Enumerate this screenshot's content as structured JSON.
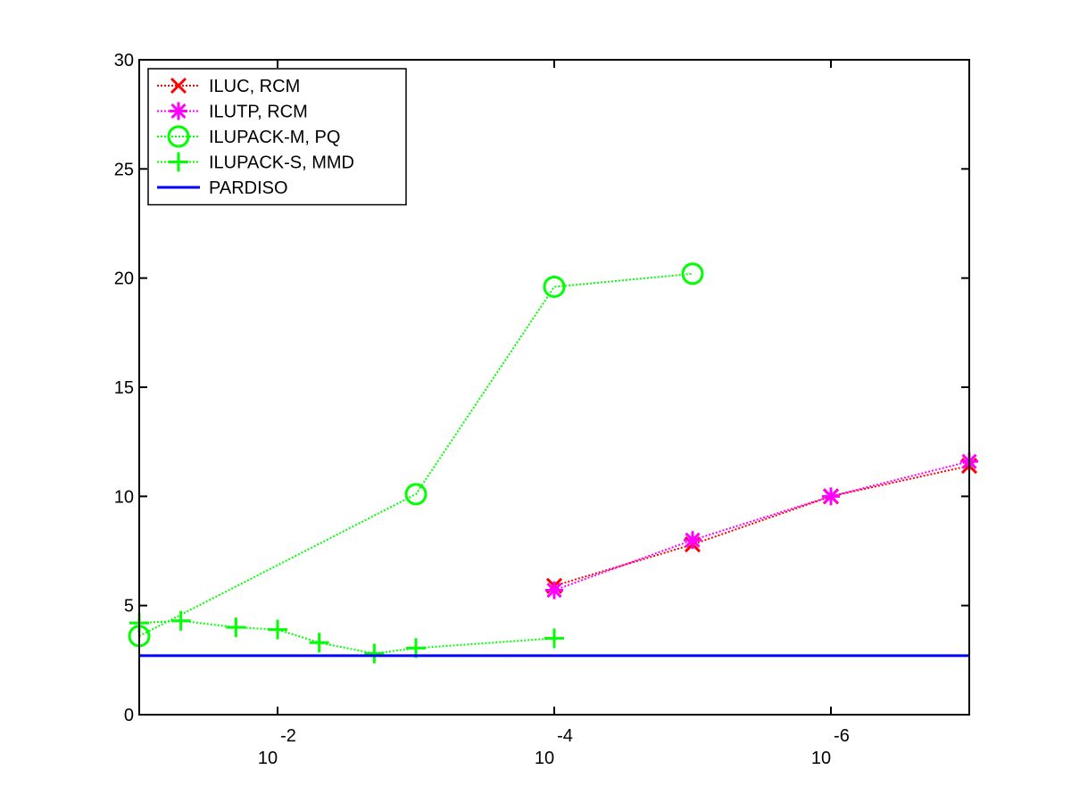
{
  "chart_data": {
    "type": "line",
    "title": "",
    "xlabel": "",
    "ylabel": "",
    "x_scale": "log",
    "x_direction": "decreasing",
    "xlim": [
      0.1,
      1e-07
    ],
    "ylim": [
      0,
      30
    ],
    "x_ticks": [
      {
        "value": 0.01,
        "base": "10",
        "exp": "-2"
      },
      {
        "value": 0.0001,
        "base": "10",
        "exp": "-4"
      },
      {
        "value": 1e-06,
        "base": "10",
        "exp": "-6"
      }
    ],
    "y_ticks": [
      0,
      5,
      10,
      15,
      20,
      25,
      30
    ],
    "grid": false,
    "legend_position": "top-left",
    "series": [
      {
        "name": "ILUC, RCM",
        "color": "#ff0000",
        "marker": "x",
        "line_style": "dotted",
        "x": [
          0.0001,
          1e-05,
          1e-06,
          1e-07
        ],
        "y": [
          5.9,
          7.8,
          10.0,
          11.4
        ]
      },
      {
        "name": "ILUTP, RCM",
        "color": "#ff00ff",
        "marker": "asterisk",
        "line_style": "dotted",
        "x": [
          0.0001,
          1e-05,
          1e-06,
          1e-07
        ],
        "y": [
          5.7,
          8.0,
          10.0,
          11.6
        ]
      },
      {
        "name": "ILUPACK-M, PQ",
        "color": "#00ff00",
        "marker": "circle",
        "line_style": "dotted",
        "x": [
          0.1,
          0.001,
          0.0001,
          1e-05
        ],
        "y": [
          3.6,
          10.1,
          19.6,
          20.2
        ]
      },
      {
        "name": "ILUPACK-S, MMD",
        "color": "#00ff00",
        "marker": "plus",
        "line_style": "dotted",
        "x": [
          0.1,
          0.05,
          0.02,
          0.01,
          0.005,
          0.002,
          0.001,
          0.0001
        ],
        "y": [
          4.2,
          4.3,
          4.0,
          3.9,
          3.3,
          2.8,
          3.05,
          3.5
        ]
      },
      {
        "name": "PARDISO",
        "color": "#0000ff",
        "marker": "none",
        "line_style": "solid",
        "x": [
          0.1,
          1e-07
        ],
        "y": [
          2.7,
          2.7
        ]
      }
    ]
  }
}
